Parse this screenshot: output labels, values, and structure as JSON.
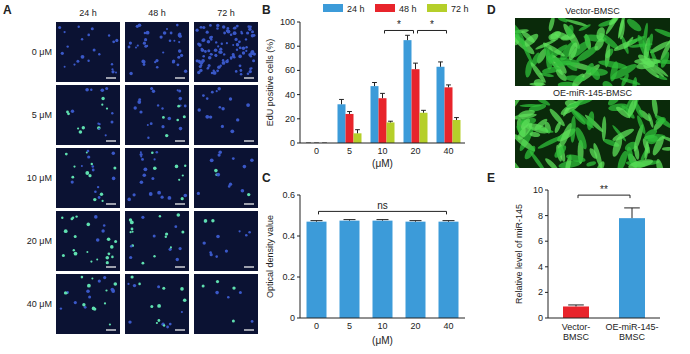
{
  "chart_data": [
    {
      "panel": "B",
      "type": "bar",
      "categories": [
        0,
        5,
        10,
        20,
        40
      ],
      "x_label": "(μM)",
      "y_label": "EdU positive cells (%)",
      "ylim": [
        0,
        100
      ],
      "yticks": [
        0,
        20,
        40,
        60,
        80,
        100
      ],
      "legend": "top",
      "series": [
        {
          "name": "24 h",
          "color": "#3c9bd9",
          "values": [
            0,
            32,
            47,
            85,
            63
          ],
          "errors": [
            0,
            4,
            3,
            4,
            4
          ]
        },
        {
          "name": "48 h",
          "color": "#e8242b",
          "values": [
            0,
            24,
            37,
            61,
            46
          ],
          "errors": [
            0,
            2,
            4,
            5,
            2
          ]
        },
        {
          "name": "72 h",
          "color": "#b5cf2a",
          "values": [
            0,
            8,
            17,
            25,
            19
          ],
          "errors": [
            0,
            3,
            1,
            2,
            2
          ]
        }
      ],
      "annotations": [
        {
          "text": "*",
          "from": 2,
          "to": 3,
          "y": 93
        },
        {
          "text": "*",
          "from": 3,
          "to": 4,
          "y": 93
        }
      ]
    },
    {
      "panel": "C",
      "type": "bar",
      "categories": [
        0,
        5,
        10,
        20,
        40
      ],
      "x_label": "(μM)",
      "y_label": "Optical density value",
      "ylim": [
        0,
        0.6
      ],
      "yticks": [
        0,
        0.2,
        0.4,
        0.6
      ],
      "color": "#3c9bd9",
      "values": [
        0.47,
        0.475,
        0.475,
        0.47,
        0.47
      ],
      "errors": [
        0.005,
        0.005,
        0.005,
        0.005,
        0.005
      ],
      "annotations": [
        {
          "text": "ns",
          "from": 0,
          "to": 4,
          "y": 0.52
        }
      ]
    },
    {
      "panel": "E",
      "type": "bar",
      "categories": [
        "Vector-BMSC",
        "OE-miR-145-BMSC"
      ],
      "y_label": "Relative level of miR-145",
      "ylim": [
        0,
        10
      ],
      "yticks": [
        0,
        2,
        4,
        6,
        8,
        10
      ],
      "colors": [
        "#e8242b",
        "#3c9bd9"
      ],
      "values": [
        0.9,
        7.8
      ],
      "errors": [
        0.12,
        0.8
      ],
      "annotations": [
        {
          "text": "**",
          "from": 0,
          "to": 1,
          "y": 9.6
        }
      ]
    }
  ],
  "panel_a": {
    "panel": "A",
    "columns": [
      "24 h",
      "48 h",
      "72 h"
    ],
    "rows": [
      "0 μM",
      "5 μM",
      "10 μM",
      "20 μM",
      "40 μM"
    ]
  },
  "panel_d": {
    "panel": "D",
    "labels": [
      "Vector-BMSC",
      "OE-miR-145-BMSC"
    ]
  }
}
